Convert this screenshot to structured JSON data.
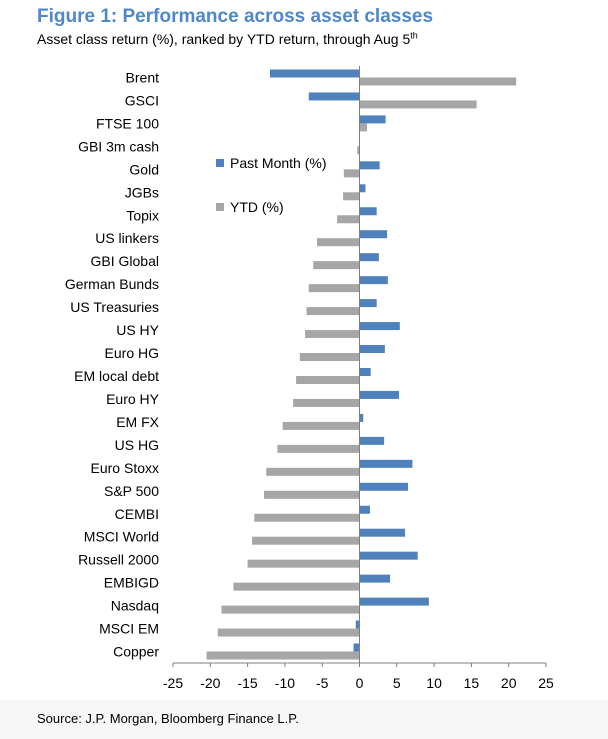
{
  "title": "Figure 1: Performance across asset classes",
  "subtitle": {
    "text": "Asset class return (%), ranked by YTD return, through Aug 5",
    "superscript": "th"
  },
  "source": "Source: J.P. Morgan, Bloomberg Finance L.P.",
  "colors": {
    "title": "#4f87c8",
    "past_month": "#4f81bd",
    "ytd": "#a6a6a6",
    "axis": "#7f7f7f"
  },
  "chart_data": {
    "type": "bar",
    "orientation": "horizontal",
    "categories": [
      "Brent",
      "GSCI",
      "FTSE 100",
      "GBI 3m cash",
      "Gold",
      "JGBs",
      "Topix",
      "US linkers",
      "GBI Global",
      "German Bunds",
      "US Treasuries",
      "US HY",
      "Euro HG",
      "EM local debt",
      "Euro HY",
      "EM FX",
      "US HG",
      "Euro Stoxx",
      "S&P 500",
      "CEMBI",
      "MSCI World",
      "Russell 2000",
      "EMBIGD",
      "Nasdaq",
      "MSCI EM",
      "Copper"
    ],
    "series": [
      {
        "name": "Past Month (%)",
        "values": [
          -12.0,
          -6.8,
          3.5,
          0.0,
          2.7,
          0.8,
          2.3,
          3.7,
          2.6,
          3.8,
          2.3,
          5.4,
          3.4,
          1.5,
          5.3,
          0.5,
          3.3,
          7.1,
          6.5,
          1.4,
          6.1,
          7.8,
          4.1,
          9.3,
          -0.5,
          -0.8
        ]
      },
      {
        "name": "YTD (%)",
        "values": [
          21.0,
          15.7,
          1.0,
          -0.3,
          -2.1,
          -2.2,
          -3.0,
          -5.7,
          -6.2,
          -6.8,
          -7.1,
          -7.3,
          -8.0,
          -8.5,
          -8.9,
          -10.3,
          -11.0,
          -12.5,
          -12.8,
          -14.1,
          -14.4,
          -15.0,
          -16.9,
          -18.5,
          -19.0,
          -20.5
        ]
      }
    ],
    "xlim": [
      -25,
      25
    ],
    "xticks": [
      -25,
      -20,
      -15,
      -10,
      -5,
      0,
      5,
      10,
      15,
      20,
      25
    ],
    "legend_position": "upper-left inside plot",
    "grid": false
  }
}
